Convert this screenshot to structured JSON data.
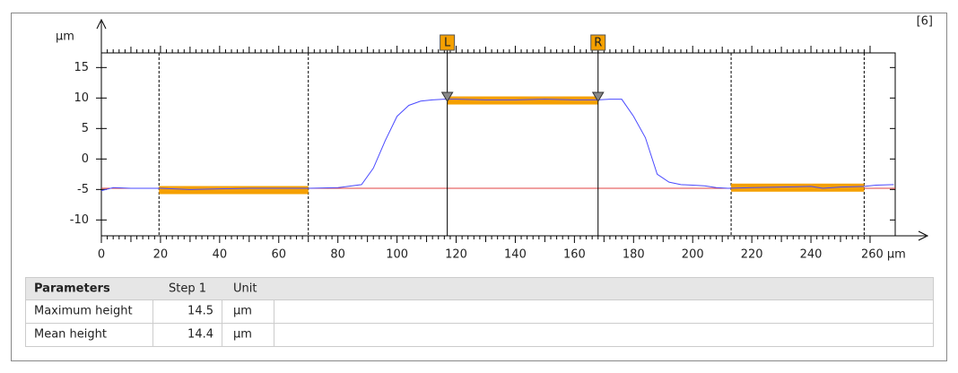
{
  "chart_data": {
    "type": "line",
    "badge": "[6]",
    "ylabel": "µm",
    "xlim": [
      0,
      268.5
    ],
    "ylim": [
      -12.6,
      17.4
    ],
    "xticks": [
      0,
      20,
      40,
      60,
      80,
      100,
      120,
      140,
      160,
      180,
      200,
      220,
      240,
      {
        "value": 260,
        "label": "260 µm"
      }
    ],
    "yticks": [
      -10,
      -5,
      0,
      5,
      10,
      15
    ],
    "series": [
      {
        "color": "#4a4aff",
        "x": [
          0,
          4,
          10,
          20,
          30,
          40,
          50,
          60,
          70,
          80,
          88,
          92,
          96,
          100,
          104,
          108,
          112,
          116,
          120,
          130,
          140,
          150,
          160,
          168,
          172,
          176,
          180,
          184,
          188,
          192,
          196,
          200,
          204,
          208,
          212,
          220,
          230,
          240,
          244,
          250,
          258,
          262,
          268
        ],
        "values": [
          -5.2,
          -4.7,
          -4.8,
          -4.8,
          -5.0,
          -4.9,
          -4.8,
          -4.8,
          -4.8,
          -4.7,
          -4.2,
          -1.5,
          3,
          7,
          8.8,
          9.5,
          9.7,
          9.8,
          9.8,
          9.7,
          9.7,
          9.8,
          9.7,
          9.7,
          9.8,
          9.8,
          7,
          3.5,
          -2.5,
          -3.8,
          -4.2,
          -4.3,
          -4.4,
          -4.7,
          -4.8,
          -4.7,
          -4.6,
          -4.5,
          -4.8,
          -4.6,
          -4.5,
          -4.3,
          -4.2
        ]
      }
    ],
    "reference_line": {
      "value": -4.8,
      "color": "#e04040"
    },
    "region_color": "#f5a000",
    "regions": [
      {
        "x": [
          19.5,
          70
        ],
        "y": -5.1
      },
      {
        "x": [
          117,
          168
        ],
        "y": 9.6
      },
      {
        "x": [
          213,
          258
        ],
        "y": -4.7
      }
    ],
    "boundaries": [
      19.5,
      70,
      213,
      258
    ],
    "cursors": [
      {
        "label": "L",
        "x": 117
      },
      {
        "label": "R",
        "x": 168
      }
    ]
  },
  "table": {
    "header": [
      "Parameters",
      "Step 1",
      "Unit"
    ],
    "rows": [
      [
        "Maximum height",
        14.5,
        "µm"
      ],
      [
        "Mean height",
        14.4,
        "µm"
      ]
    ]
  }
}
